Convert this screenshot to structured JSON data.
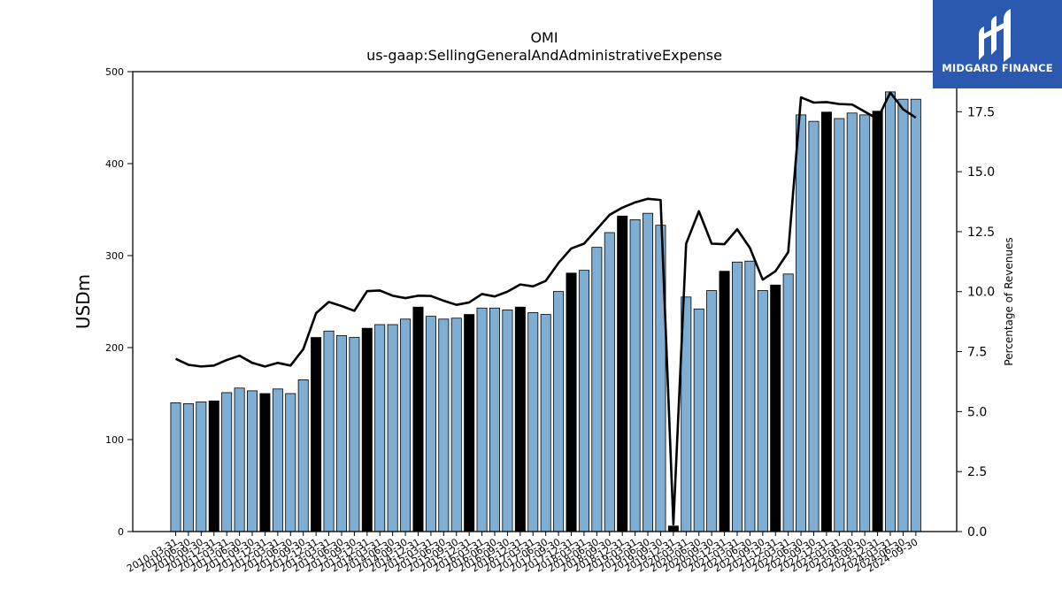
{
  "logo": {
    "text": "MIDGARD FINANCE",
    "background": "#2c59b0"
  },
  "chart_data": {
    "type": "bar",
    "title": "OMI",
    "subtitle": "us-gaap:SellingGeneralAndAdministrativeExpense",
    "ylabel": "USDm",
    "y2label": "Percentage of Revenues",
    "ylim": [
      0,
      500
    ],
    "y2lim": [
      0,
      19.17
    ],
    "yticks": [
      0,
      100,
      200,
      300,
      400,
      500
    ],
    "y2ticks": [
      "0.0",
      "2.5",
      "5.0",
      "7.5",
      "10.0",
      "12.5",
      "15.0",
      "17.5"
    ],
    "bar_color": "#7eaed3",
    "annual_bar_color": "#000000",
    "line_color": "#000000",
    "grid": false,
    "categories": [
      "2010-03-31",
      "2010-06-30",
      "2010-09-30",
      "2010-12-31",
      "2011-03-31",
      "2011-06-30",
      "2011-09-30",
      "2011-12-31",
      "2012-03-31",
      "2012-06-30",
      "2012-09-30",
      "2012-12-31",
      "2013-03-31",
      "2013-06-30",
      "2013-09-30",
      "2013-12-31",
      "2014-03-31",
      "2014-06-30",
      "2014-09-30",
      "2014-12-31",
      "2015-03-31",
      "2015-06-30",
      "2015-09-30",
      "2015-12-31",
      "2016-03-31",
      "2016-06-30",
      "2016-09-30",
      "2016-12-31",
      "2017-03-31",
      "2017-06-30",
      "2017-09-30",
      "2017-12-31",
      "2018-03-31",
      "2018-06-30",
      "2018-09-30",
      "2018-12-31",
      "2019-03-31",
      "2019-06-30",
      "2019-09-30",
      "2019-12-31",
      "2020-03-31",
      "2020-06-30",
      "2020-09-30",
      "2020-12-31",
      "2021-03-31",
      "2021-06-30",
      "2021-09-30",
      "2021-12-31",
      "2022-03-31",
      "2022-06-30",
      "2022-09-30",
      "2022-12-31",
      "2023-03-31",
      "2023-06-30",
      "2023-09-30",
      "2023-12-31",
      "2024-03-31",
      "2024-06-30",
      "2024-09-30"
    ],
    "annual": [
      false,
      false,
      false,
      true,
      false,
      false,
      false,
      true,
      false,
      false,
      false,
      true,
      false,
      false,
      false,
      true,
      false,
      false,
      false,
      true,
      false,
      false,
      false,
      true,
      false,
      false,
      false,
      true,
      false,
      false,
      false,
      true,
      false,
      false,
      false,
      true,
      false,
      false,
      false,
      true,
      false,
      false,
      false,
      true,
      false,
      false,
      false,
      true,
      false,
      false,
      false,
      true,
      false,
      false,
      false,
      true,
      false,
      false,
      false
    ],
    "series": [
      {
        "type": "bar",
        "axis": "left",
        "values": [
          140,
          139,
          141,
          142,
          151,
          156,
          153,
          150,
          155,
          150,
          165,
          211,
          218,
          213,
          211,
          221,
          225,
          225,
          231,
          244,
          234,
          231,
          232,
          236,
          243,
          243,
          241,
          244,
          238,
          236,
          261,
          281,
          284,
          309,
          325,
          343,
          339,
          346,
          333,
          6,
          255,
          242,
          262,
          283,
          293,
          294,
          262,
          268,
          280,
          453,
          446,
          456,
          449,
          455,
          453,
          457,
          478,
          470,
          470
        ]
      },
      {
        "type": "line",
        "axis": "right",
        "values": [
          7.2,
          6.95,
          6.88,
          6.92,
          7.15,
          7.33,
          7.03,
          6.88,
          7.03,
          6.92,
          7.6,
          9.1,
          9.57,
          9.4,
          9.2,
          10.02,
          10.05,
          9.83,
          9.73,
          9.83,
          9.82,
          9.62,
          9.45,
          9.55,
          9.9,
          9.8,
          10.0,
          10.3,
          10.22,
          10.45,
          11.2,
          11.8,
          12.0,
          12.6,
          13.2,
          13.5,
          13.72,
          13.87,
          13.82,
          0.3,
          12.0,
          13.35,
          12.0,
          11.98,
          12.6,
          11.82,
          10.5,
          10.85,
          11.65,
          18.1,
          17.88,
          17.9,
          17.82,
          17.8,
          17.5,
          17.2,
          18.3,
          17.6,
          17.25
        ]
      }
    ]
  }
}
